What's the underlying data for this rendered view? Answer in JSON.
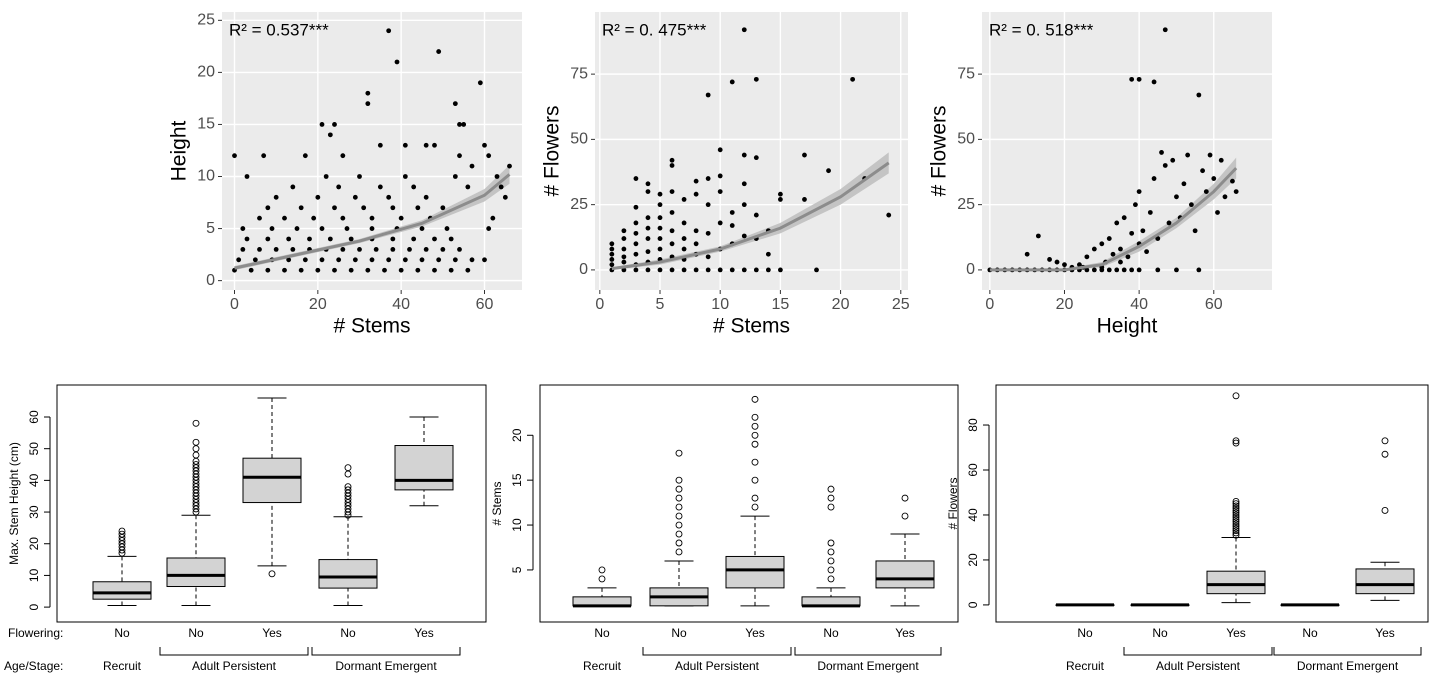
{
  "labels": {
    "flowering": "Flowering:",
    "stage": "Age/Stage:"
  },
  "chart_data": [
    {
      "type": "scatter",
      "annotation": "R² = 0.537***",
      "xlabel": "# Stems",
      "ylabel": "Height",
      "xlim": [
        -3,
        69
      ],
      "ylim": [
        -0.9,
        25.8
      ],
      "xticks": [
        0,
        20,
        40,
        60
      ],
      "yticks": [
        0,
        5,
        10,
        15,
        20,
        25
      ],
      "grid": true,
      "color": "#000000",
      "fit_color": "#8c8c8c",
      "band_color": "#c4c4c4",
      "x": [
        0,
        4,
        8,
        12,
        16,
        20,
        24,
        28,
        32,
        36,
        40,
        44,
        48,
        52,
        56,
        1,
        5,
        9,
        13,
        17,
        21,
        25,
        29,
        33,
        37,
        41,
        45,
        49,
        53,
        57,
        60,
        2,
        6,
        10,
        14,
        18,
        22,
        26,
        30,
        34,
        38,
        42,
        46,
        50,
        54,
        3,
        8,
        13,
        18,
        23,
        28,
        33,
        38,
        43,
        48,
        52,
        2,
        9,
        15,
        21,
        27,
        33,
        39,
        45,
        51,
        6,
        12,
        19,
        26,
        33,
        40,
        47,
        8,
        16,
        24,
        31,
        38,
        44,
        50,
        10,
        20,
        29,
        37,
        46,
        14,
        25,
        35,
        43,
        56,
        3,
        22,
        30,
        41,
        53,
        37,
        39,
        49,
        59,
        32,
        32,
        53,
        21,
        24,
        54,
        55,
        23,
        35,
        41,
        46,
        48,
        60,
        0,
        7,
        17,
        26,
        54,
        61,
        66,
        57,
        63,
        64,
        62,
        61,
        65
      ],
      "values": [
        1,
        1,
        1,
        1,
        1,
        1,
        1,
        1,
        1,
        1,
        1,
        1,
        1,
        1,
        1,
        2,
        2,
        2,
        2,
        2,
        2,
        2,
        2,
        2,
        2,
        2,
        2,
        2,
        2,
        2,
        2,
        3,
        3,
        3,
        3,
        3,
        3,
        3,
        3,
        3,
        3,
        3,
        3,
        3,
        3,
        4,
        4,
        4,
        4,
        4,
        4,
        4,
        4,
        4,
        4,
        4,
        5,
        5,
        5,
        5,
        5,
        5,
        5,
        5,
        5,
        6,
        6,
        6,
        6,
        6,
        6,
        6,
        7,
        7,
        7,
        7,
        7,
        7,
        7,
        8,
        8,
        8,
        8,
        8,
        9,
        9,
        9,
        9,
        9,
        10,
        10,
        10,
        10,
        10,
        24,
        21,
        22,
        19,
        18,
        17,
        17,
        15,
        15,
        15,
        15,
        14,
        13,
        13,
        13,
        13,
        13,
        12,
        12,
        12,
        12,
        12,
        12,
        11,
        11,
        10,
        9,
        6,
        5,
        8
      ],
      "fit": {
        "x": [
          0,
          15,
          30,
          45,
          60,
          66
        ],
        "values": [
          1.2,
          2.5,
          3.8,
          5.5,
          8.2,
          10.2
        ],
        "lower": [
          1.0,
          2.3,
          3.6,
          5.2,
          7.6,
          9.3
        ],
        "upper": [
          1.4,
          2.7,
          4.0,
          5.8,
          8.8,
          11.1
        ]
      }
    },
    {
      "type": "scatter",
      "annotation": "R² = 0. 475***",
      "xlabel": "# Stems",
      "ylabel": "# Flowers",
      "xlim": [
        -0.4,
        25.6
      ],
      "ylim": [
        -7.7,
        98.8
      ],
      "xticks": [
        0,
        5,
        10,
        15,
        20,
        25
      ],
      "yticks": [
        0,
        25,
        50,
        75
      ],
      "grid": true,
      "color": "#000000",
      "fit_color": "#8c8c8c",
      "band_color": "#c4c4c4",
      "x": [
        1,
        1,
        1,
        1,
        1,
        1,
        2,
        2,
        2,
        2,
        2,
        2,
        3,
        3,
        3,
        3,
        3,
        3,
        3,
        3,
        4,
        4,
        4,
        4,
        4,
        4,
        4,
        4,
        5,
        5,
        5,
        5,
        5,
        5,
        5,
        5,
        6,
        6,
        6,
        6,
        6,
        6,
        6,
        6,
        7,
        7,
        7,
        7,
        7,
        7,
        8,
        8,
        8,
        8,
        8,
        8,
        9,
        9,
        9,
        9,
        9,
        9,
        10,
        10,
        10,
        10,
        10,
        10,
        11,
        11,
        11,
        11,
        11,
        12,
        12,
        12,
        12,
        12,
        12,
        13,
        13,
        13,
        13,
        13,
        14,
        14,
        14,
        15,
        15,
        15,
        17,
        17,
        18,
        19,
        21,
        22,
        24
      ],
      "values": [
        0,
        2,
        4,
        6,
        8,
        10,
        0,
        3,
        5,
        8,
        12,
        15,
        0,
        2,
        6,
        10,
        14,
        18,
        24,
        35,
        0,
        3,
        7,
        12,
        16,
        20,
        30,
        33,
        0,
        4,
        8,
        12,
        16,
        20,
        25,
        29,
        0,
        5,
        10,
        15,
        22,
        30,
        40,
        42,
        0,
        4,
        8,
        12,
        18,
        27,
        0,
        6,
        10,
        15,
        29,
        34,
        0,
        5,
        14,
        25,
        35,
        67,
        0,
        8,
        18,
        30,
        46,
        36,
        0,
        10,
        22,
        72,
        17,
        0,
        13,
        25,
        44,
        92,
        33,
        0,
        12,
        43,
        73,
        21,
        0,
        15,
        6,
        0,
        29,
        27,
        27,
        44,
        0,
        38,
        73,
        35,
        21
      ],
      "fit": {
        "x": [
          1,
          5,
          10,
          15,
          20,
          24
        ],
        "values": [
          0.5,
          3,
          8,
          16,
          28,
          41
        ],
        "lower": [
          0,
          2,
          7,
          14,
          25,
          37
        ],
        "upper": [
          1,
          4,
          9,
          18,
          31,
          45
        ]
      }
    },
    {
      "type": "scatter",
      "annotation": "R² = 0. 518***",
      "xlabel": "Height",
      "ylabel": "# Flowers",
      "xlim": [
        -2.1,
        75.6
      ],
      "ylim": [
        -7.7,
        98.8
      ],
      "xticks": [
        0,
        20,
        40,
        60
      ],
      "yticks": [
        0,
        25,
        50,
        75
      ],
      "grid": true,
      "color": "#000000",
      "fit_color": "#8c8c8c",
      "band_color": "#c4c4c4",
      "x": [
        0,
        2,
        4,
        6,
        8,
        10,
        12,
        14,
        16,
        18,
        20,
        22,
        24,
        26,
        28,
        30,
        32,
        34,
        36,
        38,
        40,
        45,
        50,
        56,
        10,
        13,
        16,
        18,
        20,
        22,
        24,
        26,
        28,
        30,
        31,
        32,
        33,
        34,
        35,
        36,
        37,
        38,
        39,
        40,
        40,
        41,
        42,
        43,
        44,
        45,
        46,
        47,
        47,
        48,
        49,
        50,
        51,
        52,
        53,
        54,
        55,
        56,
        57,
        58,
        59,
        60,
        61,
        62,
        63,
        65,
        66,
        38,
        40,
        44,
        35,
        30,
        25
      ],
      "values": [
        0,
        0,
        0,
        0,
        0,
        0,
        0,
        0,
        0,
        0,
        0,
        0,
        0,
        0,
        0,
        0,
        0,
        0,
        0,
        0,
        0,
        0,
        0,
        0,
        6,
        13,
        4,
        3,
        2,
        1,
        2,
        5,
        8,
        10,
        3,
        12,
        6,
        18,
        8,
        20,
        5,
        14,
        25,
        10,
        30,
        15,
        7,
        22,
        35,
        12,
        45,
        40,
        92,
        18,
        42,
        28,
        20,
        33,
        44,
        25,
        15,
        67,
        38,
        30,
        44,
        35,
        22,
        42,
        28,
        34,
        30,
        73,
        73,
        72,
        3,
        1,
        1
      ],
      "fit": {
        "x": [
          0,
          20,
          30,
          40,
          50,
          60,
          66
        ],
        "values": [
          0,
          0,
          2,
          9,
          18,
          30,
          39
        ],
        "lower": [
          0,
          0,
          1,
          7,
          16,
          27,
          35
        ],
        "upper": [
          0,
          0.5,
          3,
          11,
          20,
          33,
          43
        ]
      }
    },
    {
      "type": "box",
      "ylabel": "Max. Stem Height (cm)",
      "ylim": [
        -4.7,
        70.1
      ],
      "yticks": [
        0,
        10,
        20,
        30,
        40,
        50,
        60
      ],
      "color": "#d3d3d3",
      "groups": [
        {
          "label": "Recruit",
          "boxes": [
            {
              "category": "No",
              "whislo": 0.5,
              "q1": 2.5,
              "med": 4.5,
              "q3": 8,
              "whishi": 16,
              "fliers": [
                17,
                18,
                19,
                20,
                21,
                22,
                23,
                24
              ]
            }
          ]
        },
        {
          "label": "Adult Persistent",
          "boxes": [
            {
              "category": "No",
              "whislo": 0.5,
              "q1": 6.5,
              "med": 10,
              "q3": 15.5,
              "whishi": 29,
              "fliers": [
                30,
                31,
                32,
                33,
                34,
                35,
                36,
                37,
                38,
                39,
                40,
                41,
                42,
                43,
                44,
                45,
                46,
                48,
                50,
                52,
                58
              ]
            },
            {
              "category": "Yes",
              "whislo": 13,
              "q1": 33,
              "med": 41,
              "q3": 47,
              "whishi": 66,
              "fliers": [
                10.5
              ]
            }
          ]
        },
        {
          "label": "Dormant Emergent",
          "boxes": [
            {
              "category": "No",
              "whislo": 0.5,
              "q1": 6,
              "med": 9.5,
              "q3": 15,
              "whishi": 28.5,
              "fliers": [
                29,
                30,
                31,
                32,
                33,
                34,
                35,
                36,
                37,
                38,
                42,
                44
              ]
            },
            {
              "category": "Yes",
              "whislo": 32,
              "q1": 37,
              "med": 40,
              "q3": 51,
              "whishi": 60,
              "fliers": []
            }
          ]
        }
      ]
    },
    {
      "type": "box",
      "ylabel": "# Stems",
      "ylim": [
        -0.8,
        25.6
      ],
      "yticks": [
        5,
        10,
        15,
        20
      ],
      "color": "#d3d3d3",
      "groups": [
        {
          "label": "Recruit",
          "boxes": [
            {
              "category": "No",
              "whislo": 1,
              "q1": 1,
              "med": 1,
              "q3": 2,
              "whishi": 3,
              "fliers": [
                4,
                5
              ]
            }
          ]
        },
        {
          "label": "Adult Persistent",
          "boxes": [
            {
              "category": "No",
              "whislo": 1,
              "q1": 1,
              "med": 2,
              "q3": 3,
              "whishi": 6,
              "fliers": [
                7,
                8,
                9,
                10,
                11,
                12,
                13,
                14,
                15,
                18
              ]
            },
            {
              "category": "Yes",
              "whislo": 1,
              "q1": 3,
              "med": 5,
              "q3": 6.5,
              "whishi": 11,
              "fliers": [
                12,
                13,
                15,
                17,
                19,
                20,
                21,
                22,
                24
              ]
            }
          ]
        },
        {
          "label": "Dormant Emergent",
          "boxes": [
            {
              "category": "No",
              "whislo": 1,
              "q1": 1,
              "med": 1,
              "q3": 2,
              "whishi": 3,
              "fliers": [
                4,
                5,
                6,
                7,
                8,
                12,
                13,
                14
              ]
            },
            {
              "category": "Yes",
              "whislo": 1,
              "q1": 3,
              "med": 4,
              "q3": 6,
              "whishi": 9,
              "fliers": [
                11,
                13
              ]
            }
          ]
        }
      ]
    },
    {
      "type": "box",
      "ylabel": "# Flowers",
      "ylim": [
        -7.6,
        97.8
      ],
      "yticks": [
        0,
        20,
        40,
        60,
        80
      ],
      "color": "#d3d3d3",
      "groups": [
        {
          "label": "Recruit",
          "boxes": [
            {
              "category": "No",
              "whislo": 0,
              "q1": 0,
              "med": 0,
              "q3": 0,
              "whishi": 0,
              "fliers": []
            }
          ]
        },
        {
          "label": "Adult Persistent",
          "boxes": [
            {
              "category": "No",
              "whislo": 0,
              "q1": 0,
              "med": 0,
              "q3": 0,
              "whishi": 0,
              "fliers": []
            },
            {
              "category": "Yes",
              "whislo": 1,
              "q1": 5,
              "med": 9,
              "q3": 15,
              "whishi": 30,
              "fliers": [
                31,
                32,
                33,
                34,
                35,
                36,
                37,
                38,
                39,
                40,
                41,
                42,
                43,
                44,
                45,
                46,
                72,
                73,
                93
              ]
            }
          ]
        },
        {
          "label": "Dormant Emergent",
          "boxes": [
            {
              "category": "No",
              "whislo": 0,
              "q1": 0,
              "med": 0,
              "q3": 0,
              "whishi": 0,
              "fliers": []
            },
            {
              "category": "Yes",
              "whislo": 2,
              "q1": 5,
              "med": 9,
              "q3": 16,
              "whishi": 19,
              "fliers": [
                42,
                67,
                73
              ]
            }
          ]
        }
      ]
    }
  ]
}
